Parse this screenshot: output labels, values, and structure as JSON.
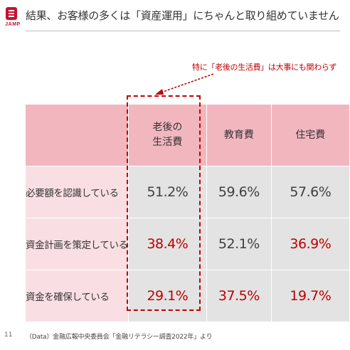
{
  "logo": {
    "text": "JAMP"
  },
  "title": "結果、お客様の多くは「資産運用」にちゃんと取り組めていません",
  "callout": "特に「老後の生活費」は大事にも関わらず",
  "table": {
    "columns": [
      "老後の\n生活費",
      "教育費",
      "住宅費"
    ],
    "rows": [
      {
        "label": "必要額を認識している",
        "values": [
          "51.2%",
          "59.6%",
          "57.6%"
        ],
        "colors": [
          "dark",
          "dark",
          "dark"
        ]
      },
      {
        "label": "資金計画を策定している",
        "values": [
          "38.4%",
          "52.1%",
          "36.9%"
        ],
        "colors": [
          "red",
          "dark",
          "red"
        ]
      },
      {
        "label": "資金を確保している",
        "values": [
          "29.1%",
          "37.5%",
          "19.7%"
        ],
        "colors": [
          "red",
          "red",
          "red"
        ]
      }
    ]
  },
  "footer": {
    "page_number": "11",
    "source": "（Data）金融広報中央委員会「金融リテラシー調査2022年」より"
  },
  "colors": {
    "accent_red": "#c00000",
    "header_pink": "#f2b6bf",
    "label_pink": "#f9dfe3",
    "cell_gray": "#e3e3e3"
  }
}
